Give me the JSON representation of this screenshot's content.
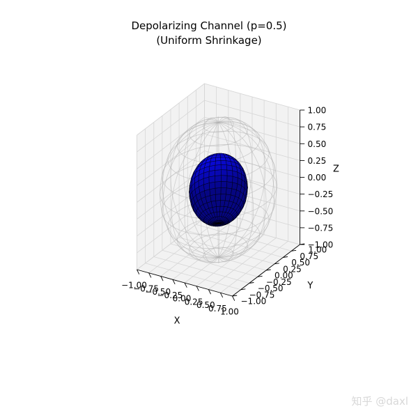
{
  "title_line_1": "Depolarizing Channel (p=0.5)",
  "title_line_2": "(Uniform Shrinkage)",
  "watermark": "知乎 @daxl",
  "chart_data": {
    "type": "surface3d",
    "xlabel": "X",
    "ylabel": "Y",
    "zlabel": "Z",
    "xlim": [
      -1,
      1
    ],
    "ylim": [
      -1,
      1
    ],
    "zlim": [
      -1,
      1
    ],
    "x_ticks": [
      "−1.00",
      "−0.75",
      "−0.50",
      "−0.25",
      "0.00",
      "0.25",
      "0.50",
      "0.75",
      "1.00"
    ],
    "y_ticks": [
      "−1.00",
      "−0.75",
      "−0.50",
      "−0.25",
      "0.00",
      "0.25",
      "0.50",
      "0.75",
      "1.00"
    ],
    "z_ticks": [
      "−1.00",
      "−0.75",
      "−0.50",
      "−0.25",
      "0.00",
      "0.25",
      "0.50",
      "0.75",
      "1.00"
    ],
    "tick_values": [
      -1,
      -0.75,
      -0.5,
      -0.25,
      0,
      0.25,
      0.5,
      0.75,
      1
    ],
    "grid": true,
    "surfaces": [
      {
        "shape": "sphere",
        "radius": 1.0,
        "style": "wireframe",
        "color": "#b0b0b0"
      },
      {
        "shape": "sphere",
        "radius": 0.5,
        "style": "surface",
        "color": "#0000ff",
        "edgecolor": "#000000"
      }
    ]
  },
  "colors": {
    "pane": "#f2f2f2",
    "grid": "#d6d6d6",
    "axis": "#000000"
  }
}
